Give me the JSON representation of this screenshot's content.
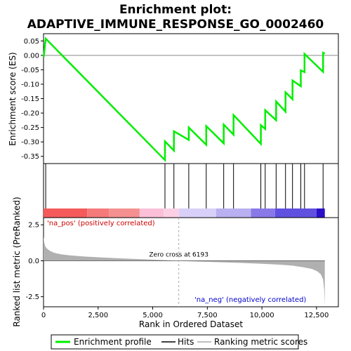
{
  "chart_data": {
    "type": "line",
    "title_line1": "Enrichment plot:",
    "title_line2": "ADAPTIVE_IMMUNE_RESPONSE_GO_0002460",
    "xlabel": "Rank in Ordered Dataset",
    "es_ylabel": "Enrichment score (ES)",
    "metric_ylabel": "Ranked list metric (PreRanked)",
    "xlim": [
      0,
      13500
    ],
    "x_ticks": [
      0,
      2500,
      5000,
      7500,
      10000,
      12500
    ],
    "x_tick_labels": [
      "0",
      "2,500",
      "5,000",
      "7,500",
      "10,000",
      "12,500"
    ],
    "es_ylim": [
      -0.375,
      0.075
    ],
    "es_ticks": [
      0.05,
      0.0,
      -0.05,
      -0.1,
      -0.15,
      -0.2,
      -0.25,
      -0.3,
      -0.35
    ],
    "es_tick_labels": [
      "0.05",
      "0.00",
      "-0.05",
      "-0.10",
      "-0.15",
      "-0.20",
      "-0.25",
      "-0.30",
      "-0.35"
    ],
    "metric_ylim": [
      -3.2,
      3.0
    ],
    "metric_ticks": [
      2.5,
      0.0,
      -2.5
    ],
    "metric_tick_labels": [
      "2.5",
      "0.0",
      "-2.5"
    ],
    "n_genes": 12880,
    "zero_cross_rank": 6193,
    "zero_cross_label": "Zero cross at 6193",
    "pos_label": "'na_pos' (positively correlated)",
    "neg_label": "'na_neg' (negatively correlated)",
    "hits": [
      100,
      5560,
      5970,
      6650,
      7450,
      8250,
      8700,
      9950,
      10150,
      10650,
      11080,
      11400,
      11780,
      11950,
      12800
    ],
    "es_profile": {
      "x": [
        0,
        10,
        100,
        5560,
        5561,
        5970,
        5971,
        6650,
        6651,
        7450,
        7451,
        8250,
        8251,
        8700,
        8701,
        9950,
        9951,
        10150,
        10151,
        10650,
        10651,
        11080,
        11081,
        11400,
        11401,
        11780,
        11781,
        11950,
        11951,
        12800,
        12801,
        12880
      ],
      "y": [
        0.0,
        -0.005,
        0.058,
        -0.363,
        -0.298,
        -0.33,
        -0.263,
        -0.293,
        -0.25,
        -0.31,
        -0.245,
        -0.305,
        -0.24,
        -0.275,
        -0.207,
        -0.307,
        -0.242,
        -0.255,
        -0.19,
        -0.225,
        -0.16,
        -0.195,
        -0.128,
        -0.152,
        -0.087,
        -0.107,
        -0.052,
        -0.058,
        0.005,
        -0.057,
        0.009,
        0.006
      ]
    },
    "metric_curve": {
      "x": [
        0,
        30,
        80,
        150,
        300,
        500,
        800,
        1200,
        1800,
        2500,
        3500,
        4500,
        5500,
        6193,
        7000,
        8000,
        9000,
        10000,
        10800,
        11400,
        11900,
        12300,
        12550,
        12700,
        12800,
        12850,
        12880
      ],
      "y": [
        1.7,
        1.3,
        1.0,
        0.85,
        0.68,
        0.55,
        0.45,
        0.38,
        0.3,
        0.24,
        0.17,
        0.11,
        0.05,
        0.0,
        -0.05,
        -0.1,
        -0.15,
        -0.21,
        -0.27,
        -0.34,
        -0.45,
        -0.58,
        -0.75,
        -0.95,
        -1.3,
        -2.0,
        -3.1
      ]
    },
    "heatmap_segments": [
      {
        "from": 0,
        "to": 2000,
        "color": "#f55a5a"
      },
      {
        "from": 2000,
        "to": 3000,
        "color": "#f57a7a"
      },
      {
        "from": 3000,
        "to": 4400,
        "color": "#f59090"
      },
      {
        "from": 4400,
        "to": 5500,
        "color": "#fbc0d8"
      },
      {
        "from": 5500,
        "to": 6200,
        "color": "#fcd0e4"
      },
      {
        "from": 6200,
        "to": 7900,
        "color": "#d8d0f8"
      },
      {
        "from": 7900,
        "to": 9500,
        "color": "#b8b0f0"
      },
      {
        "from": 9500,
        "to": 10600,
        "color": "#8878e8"
      },
      {
        "from": 10600,
        "to": 12500,
        "color": "#6050e0"
      },
      {
        "from": 12500,
        "to": 12880,
        "color": "#2a10c8"
      }
    ],
    "colors": {
      "es_line": "#00ee00",
      "hits": "#000000",
      "metric_fill": "#b0b0b0",
      "zero_line": "#888888",
      "zero_cross_line": "#aaaaaa"
    },
    "legend": [
      "Enrichment profile",
      "Hits",
      "Ranking metric scores"
    ]
  }
}
